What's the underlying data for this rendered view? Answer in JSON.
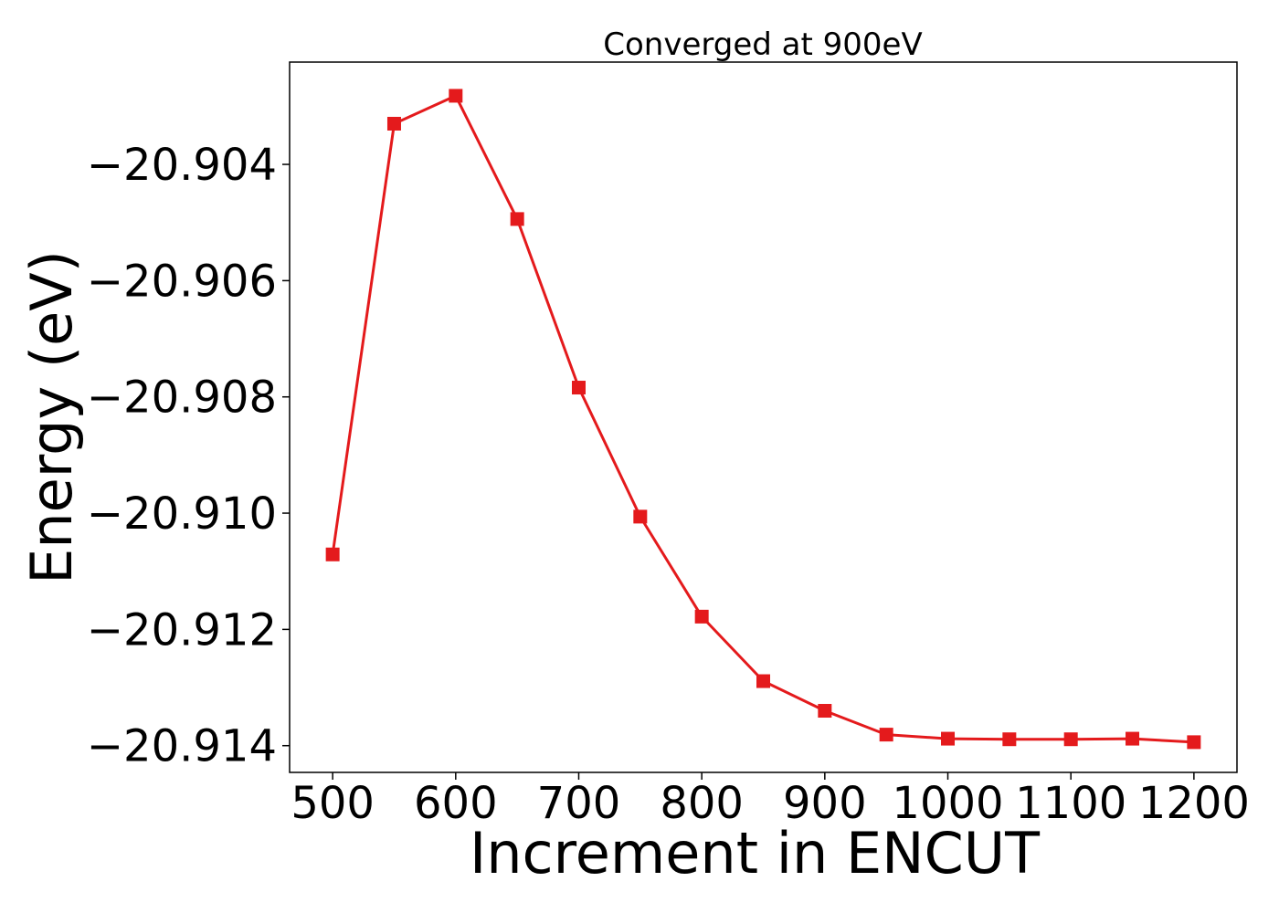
{
  "chart_data": {
    "type": "line",
    "title": "Converged at 900eV",
    "xlabel": "Increment in ENCUT",
    "ylabel": "Energy (eV)",
    "x": [
      500,
      550,
      600,
      650,
      700,
      750,
      800,
      850,
      900,
      950,
      1000,
      1050,
      1100,
      1150,
      1200
    ],
    "series": [
      {
        "values": [
          -20.91071,
          -20.9033,
          -20.90282,
          -20.90494,
          -20.90784,
          -20.91006,
          -20.91178,
          -20.91289,
          -20.9134,
          -20.91381,
          -20.91388,
          -20.91389,
          -20.91389,
          -20.91388,
          -20.91394
        ],
        "color": "#e41a1c",
        "marker": "square"
      }
    ],
    "xlim": [
      465,
      1235
    ],
    "ylim": [
      -20.91446,
      -20.90224
    ],
    "xticks": [
      500,
      600,
      700,
      800,
      900,
      1000,
      1100,
      1200
    ],
    "xtick_labels": [
      "500",
      "600",
      "700",
      "800",
      "900",
      "1000",
      "1100",
      "1200"
    ],
    "yticks": [
      -20.904,
      -20.906,
      -20.908,
      -20.91,
      -20.912,
      -20.914
    ],
    "ytick_labels": [
      "−20.904",
      "−20.906",
      "−20.908",
      "−20.910",
      "−20.912",
      "−20.914"
    ],
    "grid": false,
    "legend": "none"
  }
}
